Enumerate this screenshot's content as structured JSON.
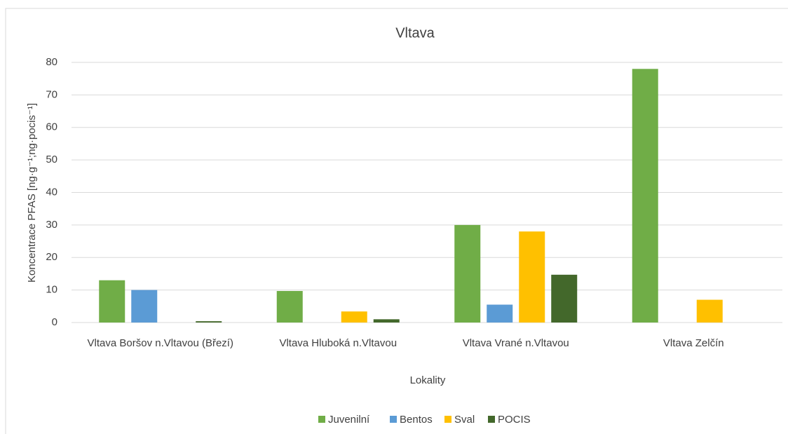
{
  "chart_data": {
    "type": "bar",
    "title": "Vltava",
    "x_label": "Lokality",
    "y_label": "Koncentrace PFAS [ng·g⁻¹;ng·pocis⁻¹]",
    "categories": [
      "Vltava Boršov n.Vltavou (Březí)",
      "Vltava Hluboká n.Vltavou",
      "Vltava Vrané n.Vltavou",
      "Vltava Zelčín"
    ],
    "series": [
      {
        "name": "Juvenilní",
        "color": "#70ad47",
        "values": [
          13,
          9.7,
          30,
          78
        ]
      },
      {
        "name": "Bentos",
        "color": "#5b9bd5",
        "values": [
          10,
          null,
          5.5,
          null
        ]
      },
      {
        "name": "Sval",
        "color": "#ffc000",
        "values": [
          null,
          3.4,
          28,
          7
        ]
      },
      {
        "name": "POCIS",
        "color": "#43682b",
        "values": [
          0.4,
          1.0,
          14.7,
          null
        ]
      }
    ],
    "ylim": [
      0,
      80
    ],
    "yticks": [
      0,
      10,
      20,
      30,
      40,
      50,
      60,
      70,
      80
    ],
    "grid": true,
    "legend": "bottom"
  }
}
